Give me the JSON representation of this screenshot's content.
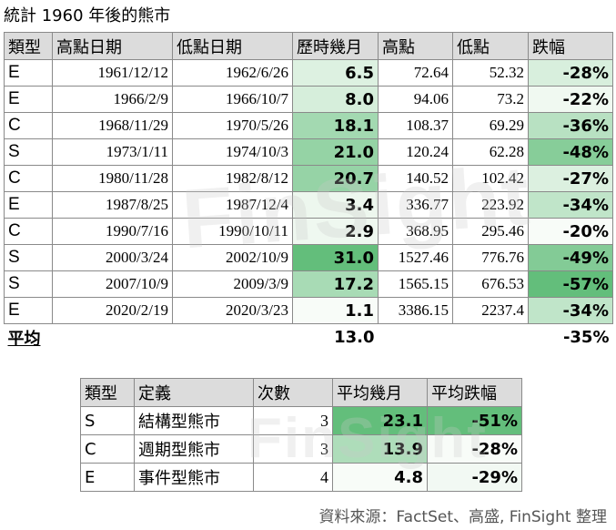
{
  "title": "統計 1960 年後的熊市",
  "main_table": {
    "headers": [
      "類型",
      "高點日期",
      "低點日期",
      "歷時幾月",
      "高點",
      "低點",
      "跌幅"
    ],
    "rows": [
      {
        "type": "E",
        "peak_date": "1961/12/12",
        "trough_date": "1962/6/26",
        "months": "6.5",
        "high": "72.64",
        "low": "52.32",
        "drop": "-28%"
      },
      {
        "type": "E",
        "peak_date": "1966/2/9",
        "trough_date": "1966/10/7",
        "months": "8.0",
        "high": "94.06",
        "low": "73.2",
        "drop": "-22%"
      },
      {
        "type": "C",
        "peak_date": "1968/11/29",
        "trough_date": "1970/5/26",
        "months": "18.1",
        "high": "108.37",
        "low": "69.29",
        "drop": "-36%"
      },
      {
        "type": "S",
        "peak_date": "1973/1/11",
        "trough_date": "1974/10/3",
        "months": "21.0",
        "high": "120.24",
        "low": "62.28",
        "drop": "-48%"
      },
      {
        "type": "C",
        "peak_date": "1980/11/28",
        "trough_date": "1982/8/12",
        "months": "20.7",
        "high": "140.52",
        "low": "102.42",
        "drop": "-27%"
      },
      {
        "type": "E",
        "peak_date": "1987/8/25",
        "trough_date": "1987/12/4",
        "months": "3.4",
        "high": "336.77",
        "low": "223.92",
        "drop": "-34%"
      },
      {
        "type": "C",
        "peak_date": "1990/7/16",
        "trough_date": "1990/10/11",
        "months": "2.9",
        "high": "368.95",
        "low": "295.46",
        "drop": "-20%"
      },
      {
        "type": "S",
        "peak_date": "2000/3/24",
        "trough_date": "2002/10/9",
        "months": "31.0",
        "high": "1527.46",
        "low": "776.76",
        "drop": "-49%"
      },
      {
        "type": "S",
        "peak_date": "2007/10/9",
        "trough_date": "2009/3/9",
        "months": "17.2",
        "high": "1565.15",
        "low": "676.53",
        "drop": "-57%"
      },
      {
        "type": "E",
        "peak_date": "2020/2/19",
        "trough_date": "2020/3/23",
        "months": "1.1",
        "high": "3386.15",
        "low": "2237.4",
        "drop": "-34%"
      }
    ],
    "average_label": "平均",
    "average_months": "13.0",
    "average_drop": "-35%"
  },
  "summary_table": {
    "headers": [
      "類型",
      "定義",
      "次數",
      "平均幾月",
      "平均跌幅"
    ],
    "rows": [
      {
        "type": "S",
        "definition": "結構型熊市",
        "count": "3",
        "avg_months": "23.1",
        "avg_drop": "-51%"
      },
      {
        "type": "C",
        "definition": "週期型熊市",
        "count": "3",
        "avg_months": "13.9",
        "avg_drop": "-28%"
      },
      {
        "type": "E",
        "definition": "事件型熊市",
        "count": "4",
        "avg_months": "4.8",
        "avg_drop": "-29%"
      }
    ]
  },
  "watermark": "FinSight",
  "source": "資料來源：FactSet、高盛, FinSight 整理",
  "colors": {
    "header_bg": "#dcdcdc",
    "heat_light": "#eef7ee",
    "heat_dark": "#63be7b"
  }
}
